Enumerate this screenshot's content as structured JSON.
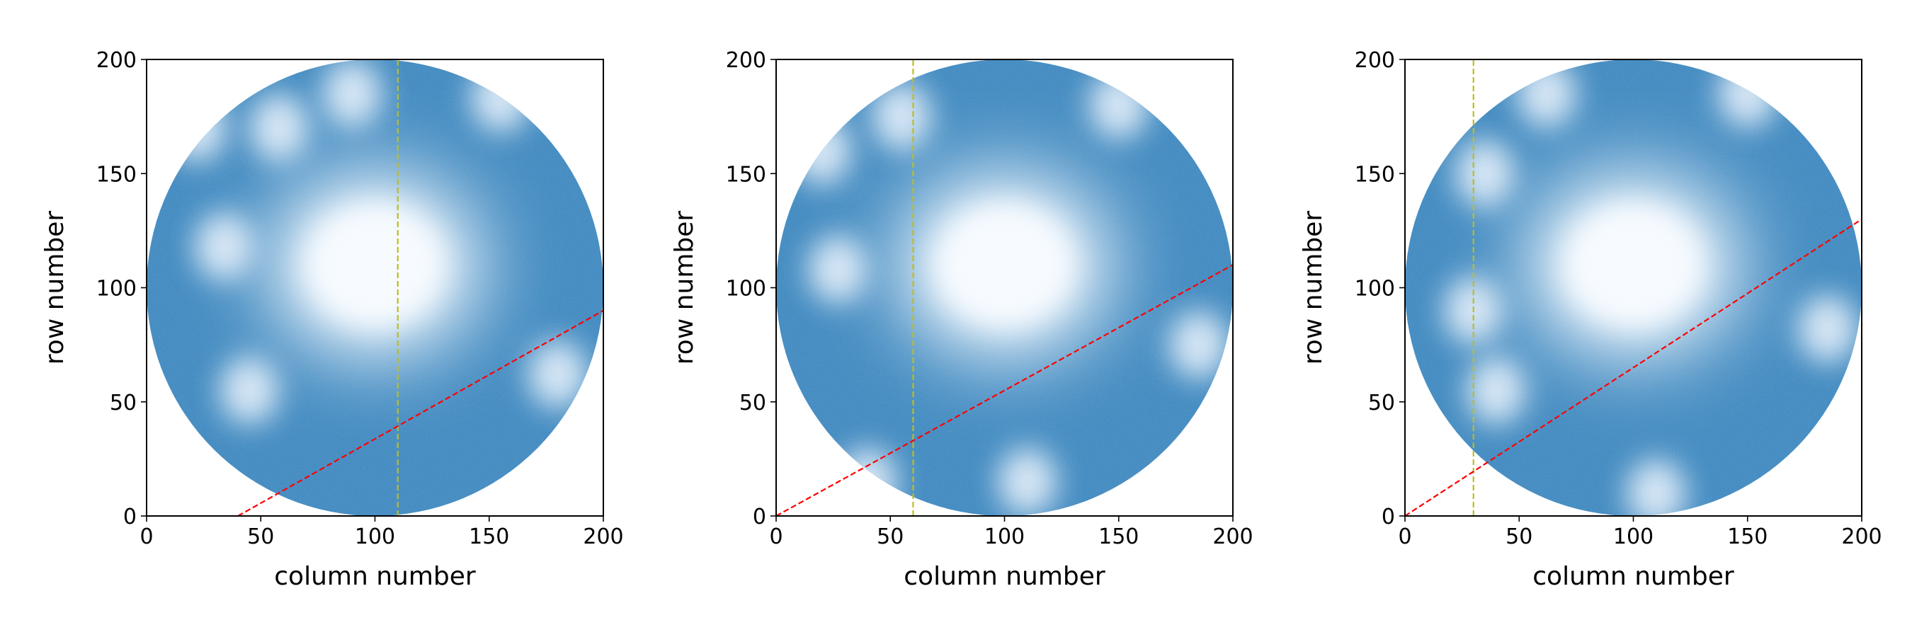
{
  "chart_data": [
    {
      "type": "heatmap",
      "title": "",
      "xlabel": "column number",
      "ylabel": "row number",
      "xlim": [
        0,
        200
      ],
      "ylim": [
        0,
        200
      ],
      "xticks": [
        0,
        50,
        100,
        150,
        200
      ],
      "yticks": [
        0,
        50,
        100,
        150,
        200
      ],
      "colormap": "Blues",
      "image_mask": "circular detector image centered at (100, 100) with radius 100",
      "bright_center": {
        "column": 100,
        "row": 110
      },
      "vertical_line": {
        "column": 110,
        "color": "#bcbd22",
        "style": "dashed"
      },
      "diagonal_line": {
        "points": [
          [
            40,
            0
          ],
          [
            200,
            90
          ]
        ],
        "color": "#ff0000",
        "style": "dashed"
      },
      "light_spots": [
        [
          34,
          118
        ],
        [
          22,
          170
        ],
        [
          58,
          170
        ],
        [
          90,
          185
        ],
        [
          45,
          55
        ],
        [
          180,
          62
        ],
        [
          155,
          183
        ]
      ]
    },
    {
      "type": "heatmap",
      "title": "",
      "xlabel": "column number",
      "ylabel": "row number",
      "xlim": [
        0,
        200
      ],
      "ylim": [
        0,
        200
      ],
      "xticks": [
        0,
        50,
        100,
        150,
        200
      ],
      "yticks": [
        0,
        50,
        100,
        150,
        200
      ],
      "colormap": "Blues",
      "image_mask": "circular detector image centered at (100, 100) with radius 100",
      "bright_center": {
        "column": 100,
        "row": 110
      },
      "vertical_line": {
        "column": 60,
        "color": "#bcbd22",
        "style": "dashed"
      },
      "diagonal_line": {
        "points": [
          [
            0,
            0
          ],
          [
            200,
            110
          ]
        ],
        "color": "#ff0000",
        "style": "dashed"
      },
      "light_spots": [
        [
          27,
          108
        ],
        [
          20,
          160
        ],
        [
          55,
          175
        ],
        [
          185,
          75
        ],
        [
          40,
          15
        ],
        [
          110,
          15
        ],
        [
          150,
          180
        ]
      ]
    },
    {
      "type": "heatmap",
      "title": "",
      "xlabel": "column number",
      "ylabel": "row number",
      "xlim": [
        0,
        200
      ],
      "ylim": [
        0,
        200
      ],
      "xticks": [
        0,
        50,
        100,
        150,
        200
      ],
      "yticks": [
        0,
        50,
        100,
        150,
        200
      ],
      "colormap": "Blues",
      "image_mask": "circular detector image centered at (100, 100) with radius 100",
      "bright_center": {
        "column": 100,
        "row": 110
      },
      "vertical_line": {
        "column": 30,
        "color": "#bcbd22",
        "style": "dashed"
      },
      "diagonal_line": {
        "points": [
          [
            0,
            0
          ],
          [
            200,
            130
          ]
        ],
        "color": "#ff0000",
        "style": "dashed"
      },
      "light_spots": [
        [
          30,
          90
        ],
        [
          35,
          150
        ],
        [
          62,
          185
        ],
        [
          185,
          82
        ],
        [
          40,
          55
        ],
        [
          110,
          10
        ],
        [
          150,
          185
        ]
      ]
    }
  ]
}
